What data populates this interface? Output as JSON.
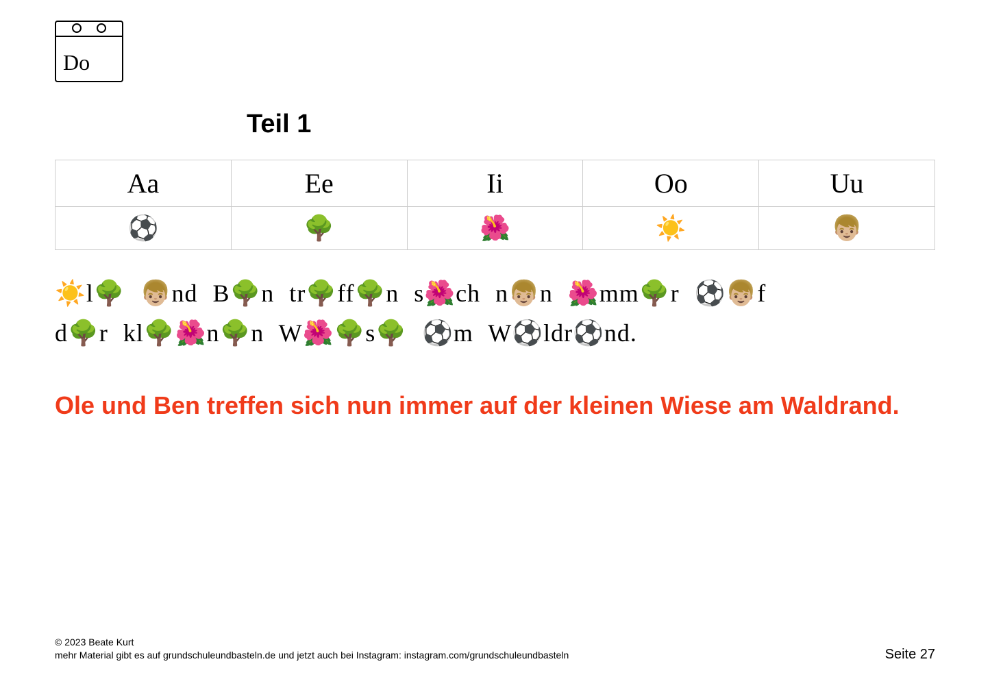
{
  "calendar": {
    "day": "Do"
  },
  "title": "Teil 1",
  "vowels": {
    "letters": [
      "Aa",
      "Ee",
      "Ii",
      "Oo",
      "Uu"
    ],
    "emojis": [
      "⚽",
      "🌳",
      "🌺",
      "☀️",
      "👦🏼"
    ]
  },
  "puzzle": {
    "line1": "☀️l🌳  👦🏼nd  B🌳n  tr🌳ff🌳n  s🌺ch  n👦🏼n  🌺mm🌳r  ⚽👦🏼f",
    "line2": "d🌳r  kl🌳🌺n🌳n  W🌺🌳s🌳  ⚽m  W⚽ldr⚽nd."
  },
  "answer": "Ole und Ben treffen sich nun immer auf der kleinen Wiese am Waldrand.",
  "footer": {
    "copyright": "© 2023 Beate Kurt",
    "info": "mehr Material gibt es auf grundschuleundbasteln.de und jetzt auch bei Instagram: instagram.com/grundschuleundbasteln",
    "page": "Seite 27"
  },
  "colors": {
    "answer_color": "#f03b1a",
    "border_color": "#cccccc",
    "text_color": "#000000",
    "background": "#ffffff"
  }
}
